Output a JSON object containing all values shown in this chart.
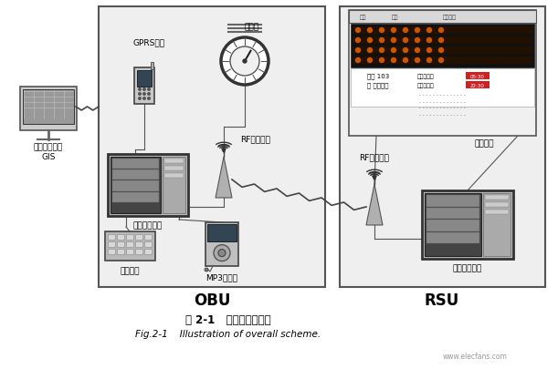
{
  "title_zh": "图 2-1   总体方案示意图",
  "title_en": "Fig.2-1    Illustration of overall scheme.",
  "obu_label": "OBU",
  "rsu_label": "RSU",
  "left_label_1": "公交监控中心",
  "left_label_2": "GIS",
  "gprs_label": "GPRS模块",
  "odometer_label": "里程表",
  "rf_obu_label": "RF通信模块",
  "main_ctrl_label": "车载主控单元",
  "keyboard_label": "操作键盘",
  "mp3_label": "MP3报站器",
  "rf_rsu_label": "RF通信模块",
  "e_station_label": "电子站台",
  "station_ctrl_label": "站台主控单元",
  "watermark": "www.elecfans.com",
  "fig_bg": "#f2f2f2",
  "box_fc": "#ececec",
  "box_ec": "#555555"
}
